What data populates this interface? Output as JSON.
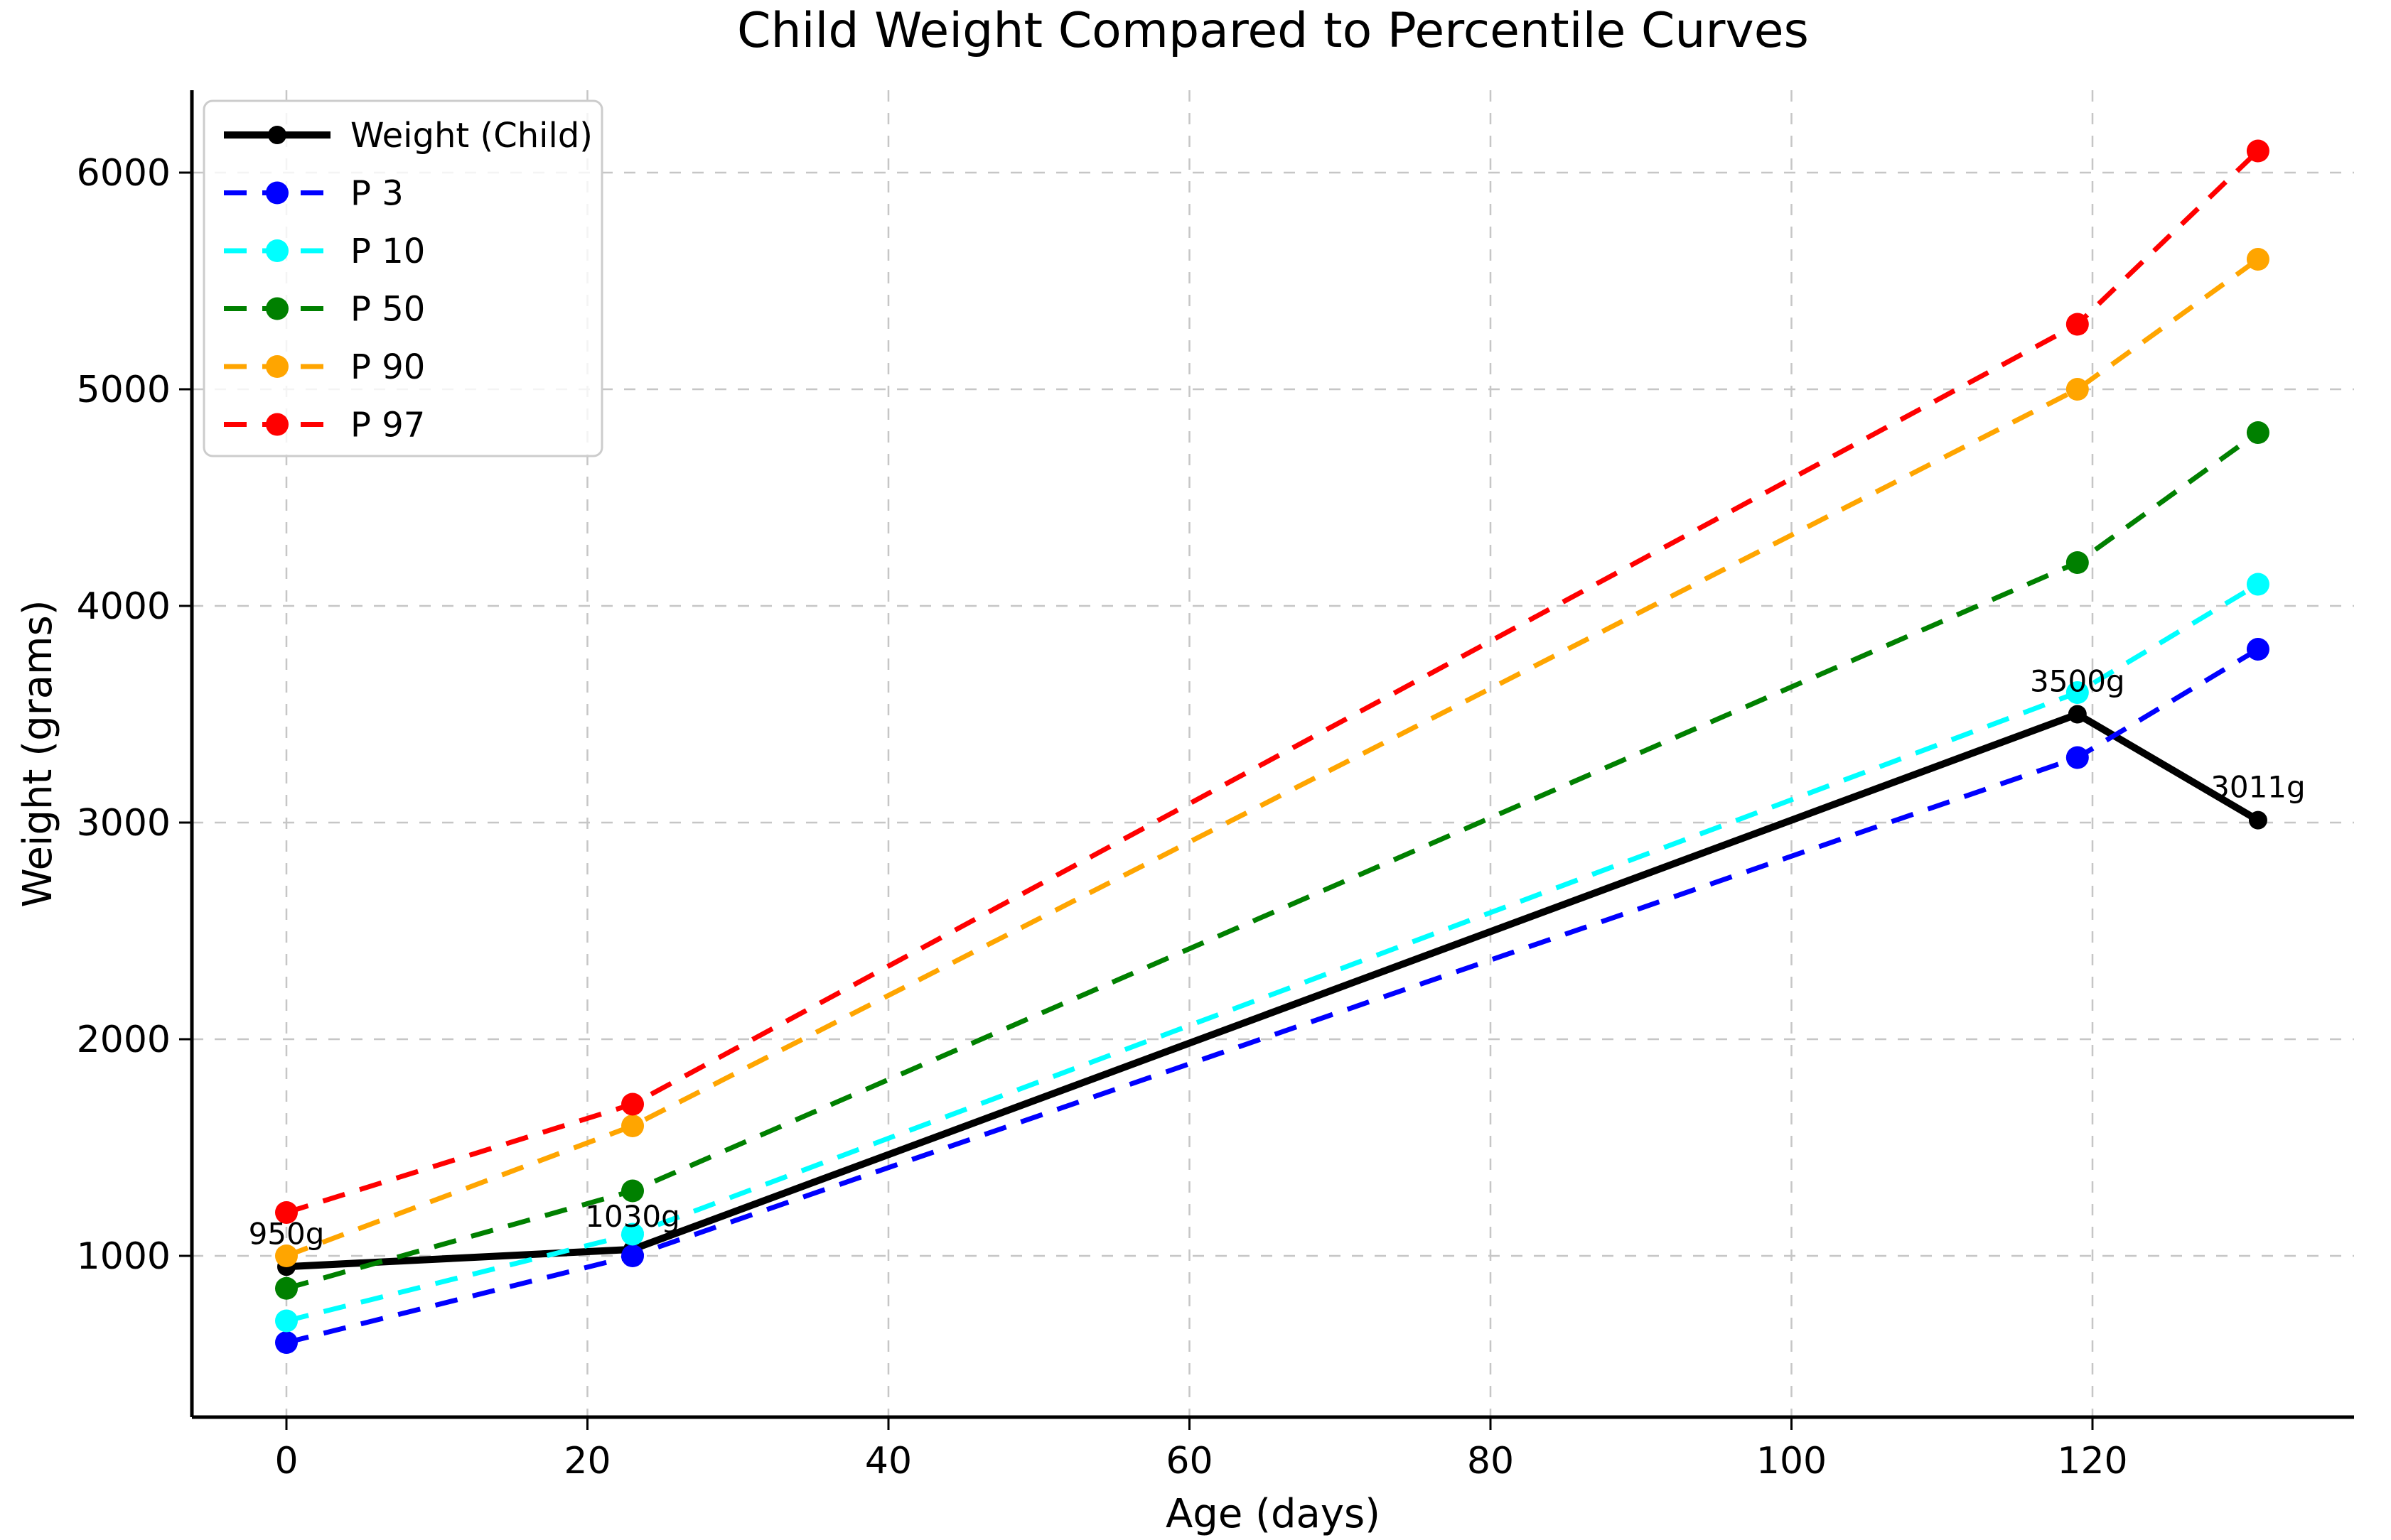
{
  "figure": {
    "background": "#ffffff"
  },
  "chart_data": {
    "type": "line",
    "title": "Child Weight Compared to Percentile Curves",
    "xlabel": "Age (days)",
    "ylabel": "Weight (grams)",
    "x": [
      0,
      23,
      119,
      131
    ],
    "series": [
      {
        "name": "Weight (Child)",
        "values": [
          950,
          1030,
          3500,
          3011
        ],
        "color": "#000000",
        "style": "solid",
        "linewidth": 10,
        "marker_radius": 13
      },
      {
        "name": "P 3",
        "values": [
          600,
          1000,
          3300,
          3800
        ],
        "color": "#0000ff",
        "style": "dashed",
        "linewidth": 7,
        "marker_radius": 16
      },
      {
        "name": "P 10",
        "values": [
          700,
          1100,
          3600,
          4100
        ],
        "color": "#00ffff",
        "style": "dashed",
        "linewidth": 7,
        "marker_radius": 16
      },
      {
        "name": "P 50",
        "values": [
          850,
          1300,
          4200,
          4800
        ],
        "color": "#008000",
        "style": "dashed",
        "linewidth": 7,
        "marker_radius": 16
      },
      {
        "name": "P 90",
        "values": [
          1000,
          1600,
          5000,
          5600
        ],
        "color": "#ffa500",
        "style": "dashed",
        "linewidth": 7,
        "marker_radius": 16
      },
      {
        "name": "P 97",
        "values": [
          1200,
          1700,
          5300,
          6100
        ],
        "color": "#ff0000",
        "style": "dashed",
        "linewidth": 7,
        "marker_radius": 16
      }
    ],
    "annotations": [
      {
        "text": "950g",
        "x": 0,
        "y": 950
      },
      {
        "text": "1030g",
        "x": 23,
        "y": 1030
      },
      {
        "text": "3500g",
        "x": 119,
        "y": 3500
      },
      {
        "text": "3011g",
        "x": 131,
        "y": 3011
      }
    ],
    "x_ticks": [
      "0",
      "20",
      "40",
      "60",
      "80",
      "100",
      "120"
    ],
    "x_tick_values": [
      0,
      20,
      40,
      60,
      80,
      100,
      120
    ],
    "y_ticks": [
      "1000",
      "2000",
      "3000",
      "4000",
      "5000",
      "6000"
    ],
    "y_tick_values": [
      1000,
      2000,
      3000,
      4000,
      5000,
      6000
    ],
    "xlim": [
      -6.3,
      137.4
    ],
    "ylim": [
      256,
      6380
    ],
    "grid": true,
    "grid_color": "#c6c6c6",
    "legend_position": "upper left",
    "legend_entries": [
      "Weight (Child)",
      "P 3",
      "P 10",
      "P 50",
      "P 90",
      "P 97"
    ]
  }
}
